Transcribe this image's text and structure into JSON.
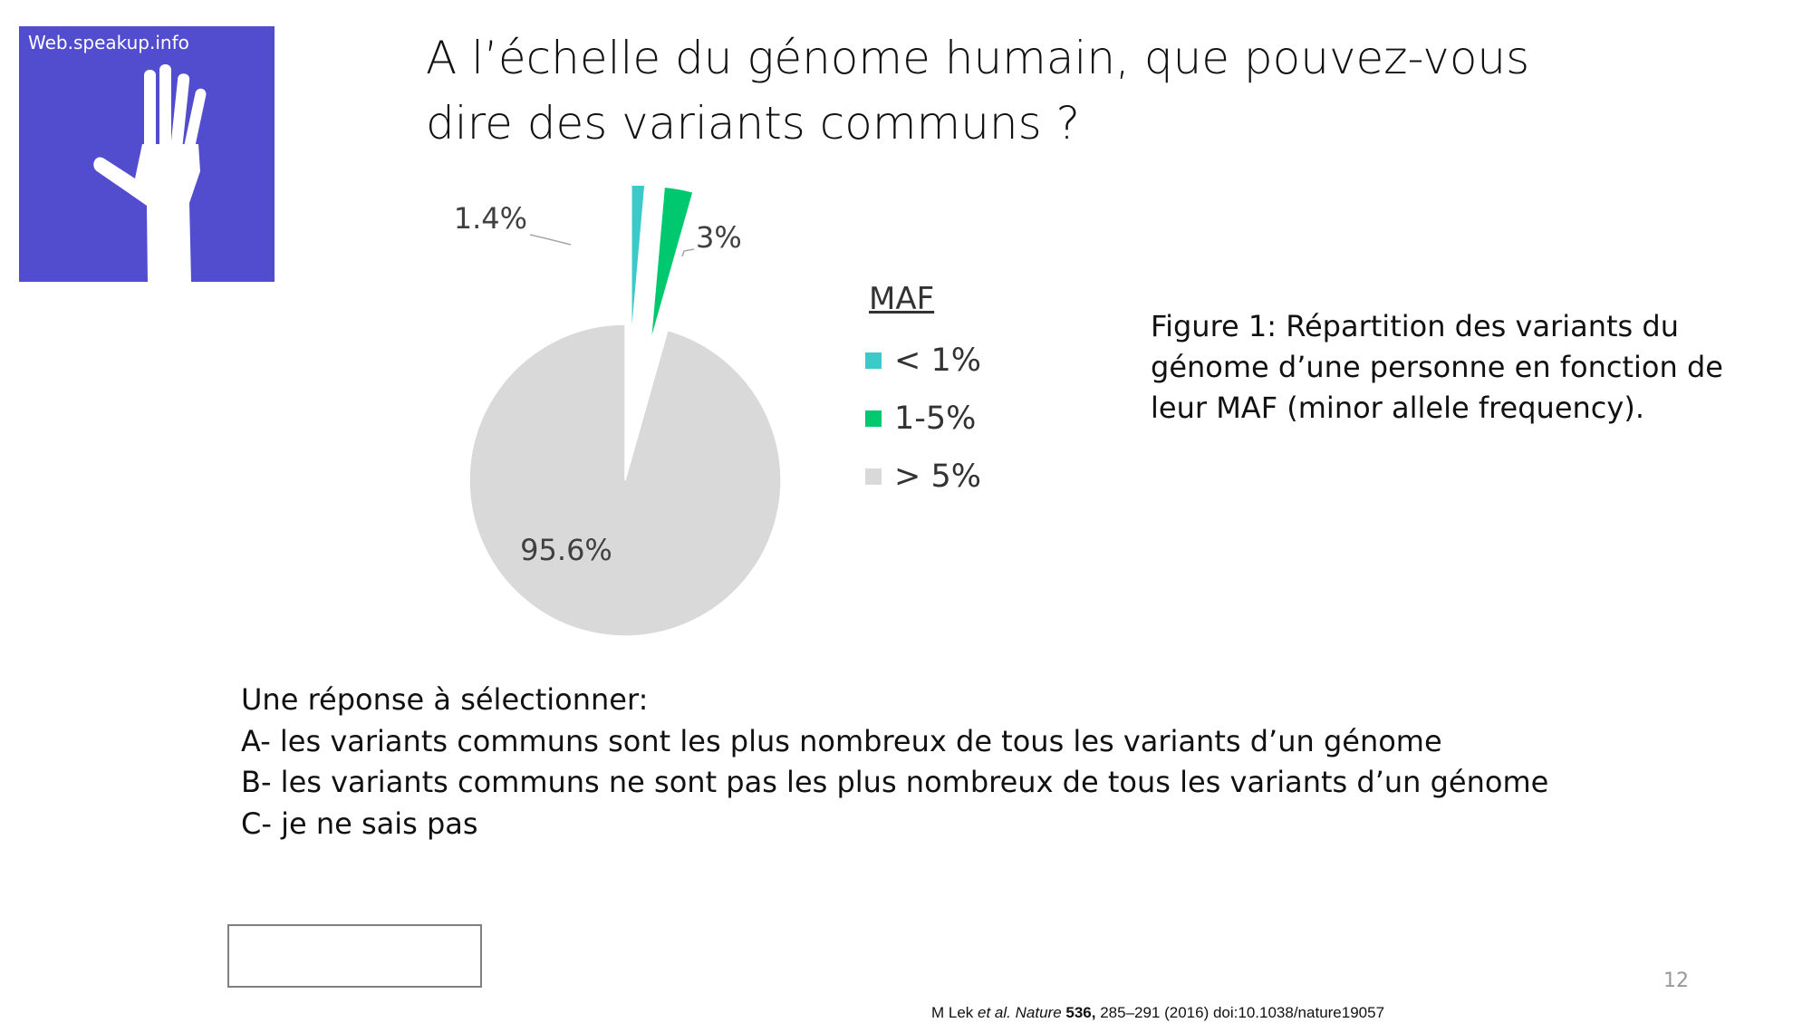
{
  "logo": {
    "text": "Web.speakup.info",
    "icon": "raised-hand-icon",
    "background": "#524dcf"
  },
  "title": "A l’échelle du génome humain, que pouvez-vous dire des variants communs ?",
  "chart_data": {
    "type": "pie",
    "title": "",
    "legend_title": "MAF",
    "legend_position": "right",
    "slices": [
      {
        "label": "< 1%",
        "value": 1.4,
        "display": "1.4%",
        "color": "#3cc9c9",
        "exploded": true
      },
      {
        "label": "1-5%",
        "value": 3,
        "display": "3%",
        "color": "#00c86e",
        "exploded": true
      },
      {
        "label": "> 5%",
        "value": 95.6,
        "display": "95.6%",
        "color": "#d9d9d9",
        "exploded": false
      }
    ]
  },
  "caption": "Figure 1: Répartition des variants du génome d’une personne en fonction de leur MAF (minor allele frequency).",
  "question": {
    "prompt": "Une réponse à sélectionner:",
    "options": [
      "A- les variants communs sont les plus nombreux de tous les variants d’un génome",
      "B- les variants communs ne sont pas les plus nombreux de tous les variants d’un génome",
      "C- je ne sais pas"
    ]
  },
  "slide_number": "12",
  "reference": {
    "author": "M Lek ",
    "etal": "et al.",
    "journal": " Nature ",
    "volume": "536,",
    "rest": " 285–291 (2016) doi:10.1038/nature19057"
  }
}
